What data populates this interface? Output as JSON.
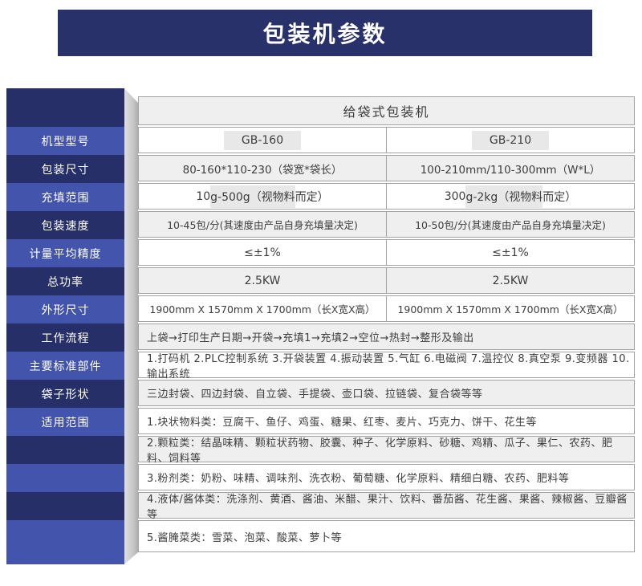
{
  "banner": {
    "title": "包装机参数"
  },
  "colors": {
    "banner_navy": "#283169",
    "sidebar_navy": "#262f68",
    "sidebar_royal": "#4254ab",
    "row_gray": "#efefef",
    "row_white": "#ffffff",
    "border_gray": "#a3a3a3",
    "highlight_gray": "#e8e8e8",
    "text_dark": "#3d3d3d"
  },
  "table": {
    "header": "给袋式包装机",
    "sidebar": [
      "",
      "机型型号",
      "包装尺寸",
      "充填范围",
      "包装速度",
      "计量平均精度",
      "总功率",
      "外形尺寸",
      "工作流程",
      "主要标准部件",
      "袋子形状",
      "适用范围",
      "",
      "",
      "",
      ""
    ],
    "rows": {
      "model": {
        "c1": "GB-160",
        "c2": "GB-210"
      },
      "size": {
        "c1": "80-160*110-230（袋宽*袋长）",
        "c2": "100-210mm/110-300mm（W*L）"
      },
      "fill": {
        "c1_pre": "10",
        "c1_hl": "g-500g（视物料",
        "c1_post": "而定）",
        "c2_pre": "300",
        "c2_hl": "g-2kg（视物料",
        "c2_post": "而定）"
      },
      "speed": {
        "c1": "10-45包/分(其速度由产品自身充填量决定)",
        "c2": "10-50包/分(其速度由产品自身充填量决定)"
      },
      "precision": {
        "c1": "≤±1%",
        "c2": "≤±1%"
      },
      "power": {
        "c1": "2.5KW",
        "c2": "2.5KW"
      },
      "dims": {
        "c1": "1900mm X 1570mm X 1700mm（长X宽X高）",
        "c2": "1900mm X 1570mm X 1700mm（长X宽X高）"
      },
      "workflow": "上袋→打印生产日期→开袋→充填1→充填2→空位→热封→整形及输出",
      "components": "1.打码机 2.PLC控制系统 3.开袋装置 4.振动装置 5.气缸 6.电磁阀 7.温控仪 8.真空泵 9.变频器 10.输出系统",
      "bag_shapes": "三边封袋、四边封袋、自立袋、手提袋、壶口袋、拉链袋、复合袋等等",
      "scope1": "1.块状物料类：豆腐干、鱼仔、鸡蛋、糖果、红枣、麦片、巧克力、饼干、花生等",
      "scope2": "2.颗粒类：结晶味精、颗粒状药物、胶囊、种子、化学原料、砂糖、鸡精、瓜子、果仁、农药、肥料、饲料等",
      "scope3": "3.粉剂类：奶粉、味精、调味剂、洗衣粉、葡萄糖、化学原料、精细白糖、农药、肥料等",
      "scope4": "4.液体/酱体类：洗涤剂、黄酒、酱油、米醋、果汁、饮料、番茄酱、花生酱、果酱、辣椒酱、豆瓣酱等",
      "scope5": "5.酱腌菜类：雪菜、泡菜、酸菜、萝卜等"
    }
  }
}
